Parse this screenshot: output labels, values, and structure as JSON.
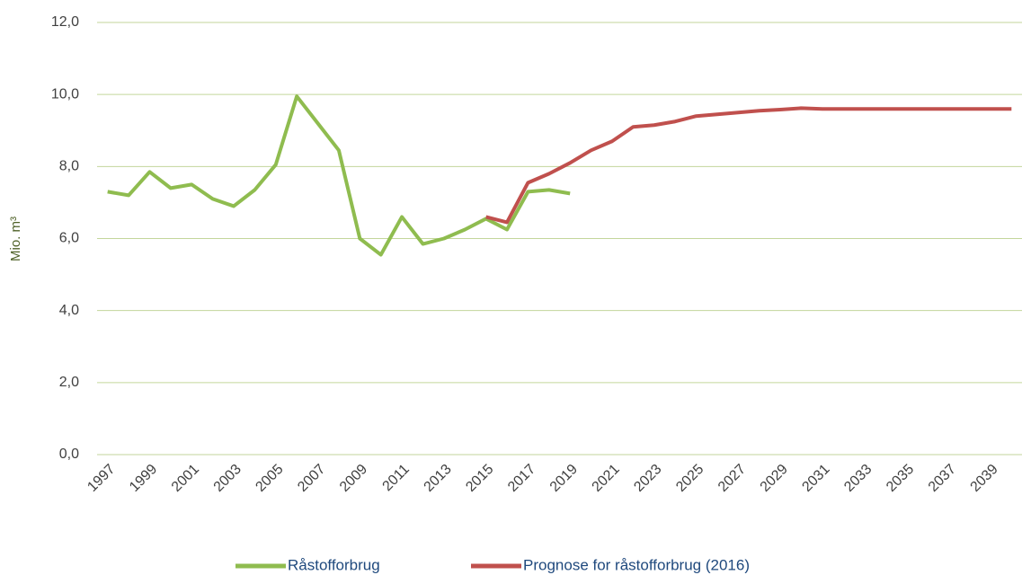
{
  "chart_data": {
    "type": "line",
    "y_label": "Mio. m³",
    "categories": [
      "1997",
      null,
      "1999",
      null,
      "2001",
      null,
      "2003",
      null,
      "2005",
      null,
      "2007",
      null,
      "2009",
      null,
      "2011",
      null,
      "2013",
      null,
      "2015",
      null,
      "2017",
      null,
      "2019",
      null,
      "2021",
      null,
      "2023",
      null,
      "2025",
      null,
      "2027",
      null,
      "2029",
      null,
      "2031",
      null,
      "2033",
      null,
      "2035",
      null,
      "2037",
      null,
      "2039",
      null
    ],
    "series": [
      {
        "name": "Råstofforbrug",
        "color": "#8fbc4f",
        "values": [
          7.3,
          7.2,
          7.85,
          7.4,
          7.5,
          7.1,
          6.9,
          7.35,
          8.05,
          9.95,
          9.2,
          8.45,
          6.0,
          5.55,
          6.6,
          5.85,
          6.0,
          6.25,
          6.55,
          6.25,
          7.3,
          7.35,
          7.25,
          null,
          null,
          null,
          null,
          null,
          null,
          null,
          null,
          null,
          null,
          null,
          null,
          null,
          null,
          null,
          null,
          null,
          null,
          null,
          null,
          null
        ]
      },
      {
        "name": "Prognose for råstofforbrug (2016)",
        "color": "#c0504d",
        "values": [
          null,
          null,
          null,
          null,
          null,
          null,
          null,
          null,
          null,
          null,
          null,
          null,
          null,
          null,
          null,
          null,
          null,
          null,
          6.6,
          6.45,
          7.55,
          7.8,
          8.1,
          8.45,
          8.7,
          9.1,
          9.15,
          9.25,
          9.4,
          9.45,
          9.5,
          9.55,
          9.58,
          9.62,
          9.6,
          9.6,
          9.6,
          9.6,
          9.6,
          9.6,
          9.6,
          9.6,
          9.6,
          9.6
        ]
      }
    ],
    "ylim": [
      0,
      12
    ],
    "yticks": [
      {
        "value": 0,
        "label": "0,0"
      },
      {
        "value": 2,
        "label": "2,0"
      },
      {
        "value": 4,
        "label": "4,0"
      },
      {
        "value": 6,
        "label": "6,0"
      },
      {
        "value": 8,
        "label": "8,0"
      },
      {
        "value": 10,
        "label": "10,0"
      },
      {
        "value": 12,
        "label": "12,0"
      }
    ],
    "grid": true,
    "legend": "bottom"
  }
}
